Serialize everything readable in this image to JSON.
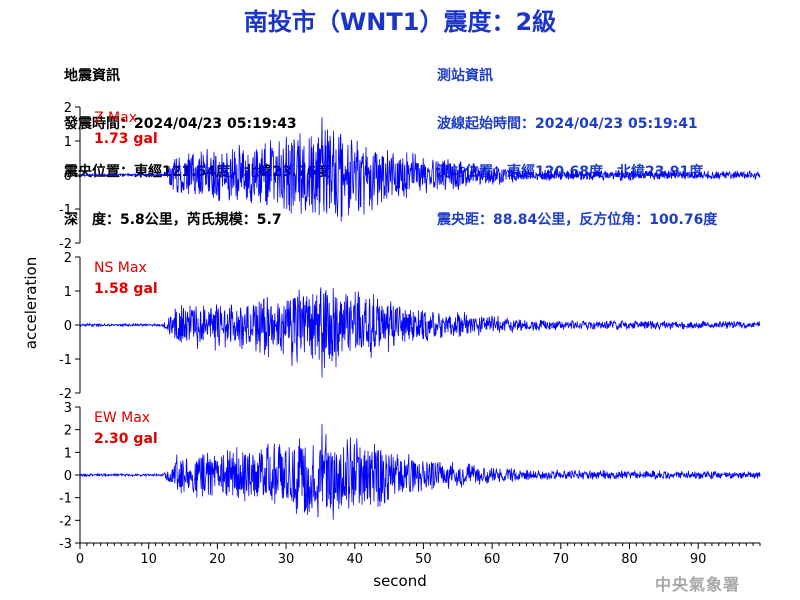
{
  "title": "南投市（WNT1）震度：2級",
  "quake_info": {
    "heading": "地震資訊",
    "origin_time": "發震時間：2024/04/23 05:19:43",
    "epicenter": "震央位置：東經121.54度，北緯23.76度",
    "depth_magnitude": "深　度：5.8公里，芮氏規模：5.7"
  },
  "station_info": {
    "heading": "測站資訊",
    "waveform_start": "波線起始時間：2024/04/23 05:19:41",
    "station_location": "測站位置：東經120.68度，北緯23.91度",
    "distance_azimuth": "震央距：88.84公里，反方位角：100.76度"
  },
  "agency": "中央氣象署",
  "colors": {
    "title": "#1a35c8",
    "trace": "#0000ff",
    "max_label": "#e00000",
    "station_info": "#1f3ec8"
  },
  "chart_data": {
    "type": "line",
    "xlabel": "second",
    "ylabel": "acceleration",
    "xlim": [
      0,
      99
    ],
    "xticks": [
      "0",
      "10",
      "20",
      "30",
      "40",
      "50",
      "60",
      "70",
      "80",
      "90"
    ],
    "panels": [
      {
        "name": "Z Max",
        "max_label": "1.73 gal",
        "max": 1.73,
        "ylim": [
          -2,
          2
        ],
        "yticks": [
          "2",
          "1",
          "0",
          "-1",
          "-2"
        ]
      },
      {
        "name": "NS Max",
        "max_label": "1.58 gal",
        "max": 1.58,
        "ylim": [
          -2,
          2
        ],
        "yticks": [
          "2",
          "1",
          "0",
          "-1",
          "-2"
        ]
      },
      {
        "name": "EW Max",
        "max_label": "2.30 gal",
        "max": 2.3,
        "ylim": [
          -3,
          3
        ],
        "yticks": [
          "3",
          "2",
          "1",
          "0",
          "-1",
          "-2",
          "-3"
        ]
      }
    ]
  }
}
